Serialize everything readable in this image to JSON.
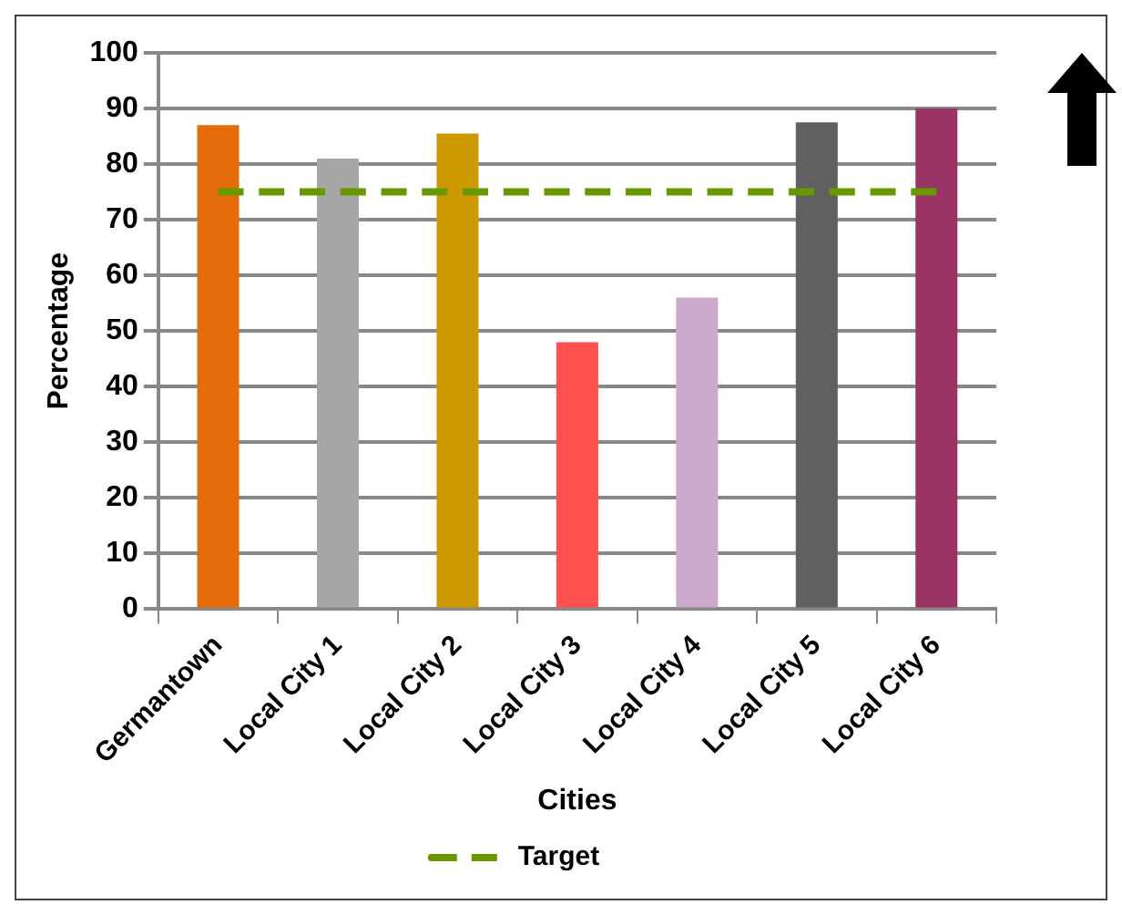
{
  "chart_data": {
    "type": "bar",
    "xlabel": "Cities",
    "ylabel": "Percentage",
    "categories": [
      "Germantown",
      "Local City 1",
      "Local City 2",
      "Local City 3",
      "Local City 4",
      "Local City 5",
      "Local City 6"
    ],
    "series": [
      {
        "colors": [
          "#e46c0a",
          "#a6a6a6",
          "#cc9900",
          "#ff5050",
          "#ccaacc",
          "#606060",
          "#993366"
        ],
        "values": [
          87,
          81,
          85.5,
          48,
          56,
          87.5,
          90
        ]
      },
      {
        "type": "line",
        "name": "Target",
        "color": "#669900",
        "line_style": "dashed",
        "marker": "none",
        "values": [
          75,
          75,
          75,
          75,
          75,
          75,
          75
        ]
      }
    ],
    "ylim": [
      0,
      100
    ],
    "yticks": [
      0,
      10,
      20,
      30,
      40,
      50,
      60,
      70,
      80,
      90,
      100
    ],
    "grid": "y",
    "legend": "bottom"
  }
}
